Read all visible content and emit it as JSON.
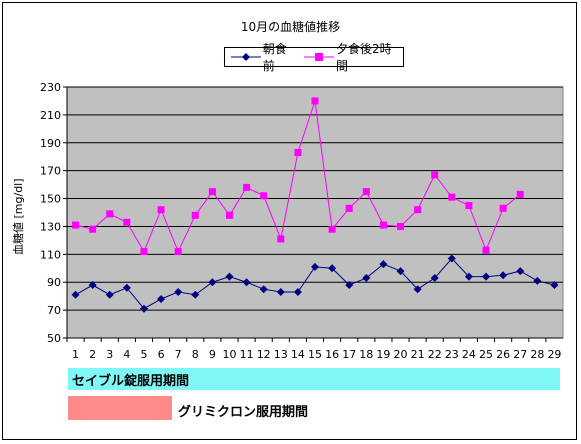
{
  "chart_data": {
    "type": "line",
    "title": "10月の血糖値推移",
    "xlabel": "",
    "ylabel": "血糖値 [mg/dl]",
    "ylim": [
      50,
      230
    ],
    "yticks": [
      50,
      70,
      90,
      110,
      130,
      150,
      170,
      190,
      210,
      230
    ],
    "x": [
      1,
      2,
      3,
      4,
      5,
      6,
      7,
      8,
      9,
      10,
      11,
      12,
      13,
      14,
      15,
      16,
      17,
      18,
      19,
      20,
      21,
      22,
      23,
      24,
      25,
      26,
      27,
      28,
      29
    ],
    "grid": true,
    "legend": "top",
    "series": [
      {
        "name": "朝食前",
        "color": "#000080",
        "marker": "diamond",
        "values": [
          81,
          88,
          81,
          86,
          71,
          78,
          83,
          81,
          90,
          94,
          90,
          85,
          83,
          83,
          101,
          100,
          88,
          93,
          103,
          98,
          85,
          93,
          107,
          94,
          94,
          95,
          98,
          91,
          88
        ]
      },
      {
        "name": "夕食後2時間",
        "color": "#ff00ff",
        "marker": "square",
        "values": [
          131,
          128,
          139,
          133,
          112,
          142,
          112,
          138,
          155,
          138,
          158,
          152,
          121,
          183,
          220,
          128,
          143,
          155,
          131,
          130,
          142,
          167,
          151,
          145,
          113,
          143,
          153,
          null,
          null
        ]
      }
    ]
  },
  "periods": {
    "seibul_label": "セイブル錠服用期間",
    "seibul_color": "#7ff7f7",
    "glimicron_label": "グリミクロン服用期間",
    "glimicron_color": "#ff8a8a"
  }
}
